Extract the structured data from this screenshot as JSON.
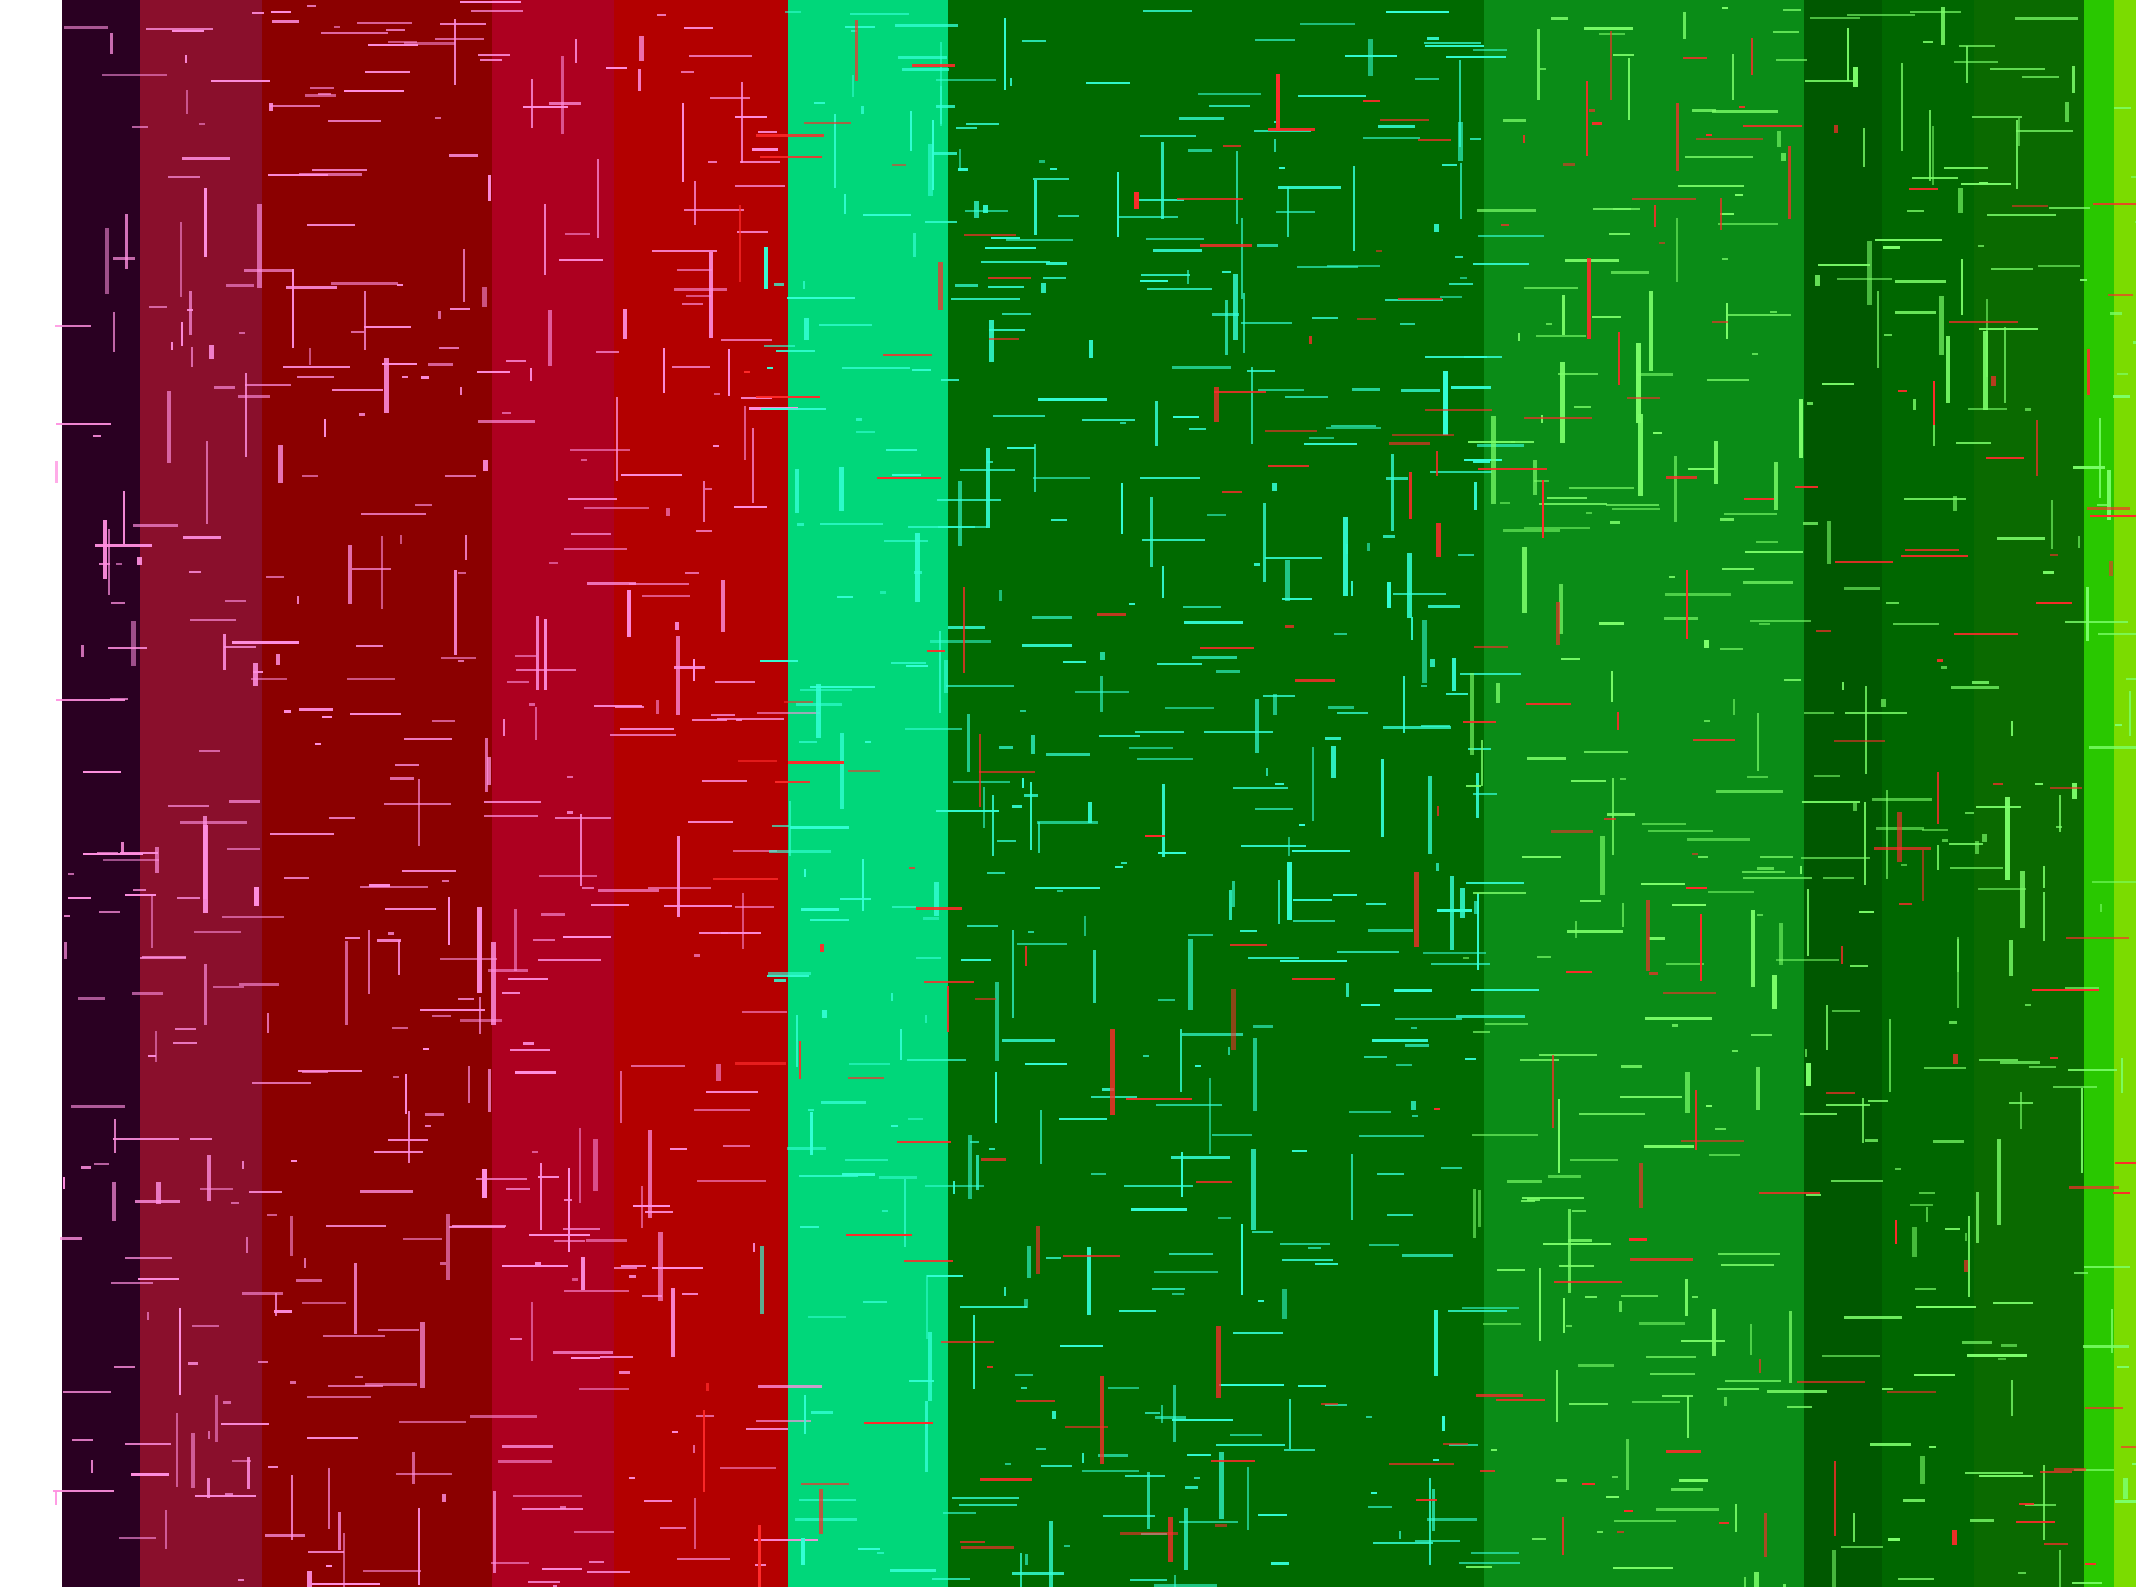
{
  "bands": [
    {
      "name": "white-edge",
      "color": "#ffffff"
    },
    {
      "name": "dark-purple",
      "color": "#2a0022"
    },
    {
      "name": "maroon",
      "color": "#8a0f2c"
    },
    {
      "name": "dark-red",
      "color": "#8b0000"
    },
    {
      "name": "crimson",
      "color": "#ad0020"
    },
    {
      "name": "red",
      "color": "#b30000"
    },
    {
      "name": "red-alt",
      "color": "#b50000"
    },
    {
      "name": "mint-green",
      "color": "#00d77a"
    },
    {
      "name": "forest-green",
      "color": "#006a00"
    },
    {
      "name": "bright-green",
      "color": "#0a8c17"
    },
    {
      "name": "dark-green",
      "color": "#005800"
    },
    {
      "name": "medium-green",
      "color": "#006700"
    },
    {
      "name": "deep-green",
      "color": "#0a6a00"
    },
    {
      "name": "lime-green",
      "color": "#29c800"
    },
    {
      "name": "chartreuse",
      "color": "#7bdc00"
    }
  ],
  "accents": {
    "pink": "#ff8fe0",
    "cyan": "#33ffd6",
    "light-green": "#7cff6a",
    "red": "#ff2a2a"
  }
}
